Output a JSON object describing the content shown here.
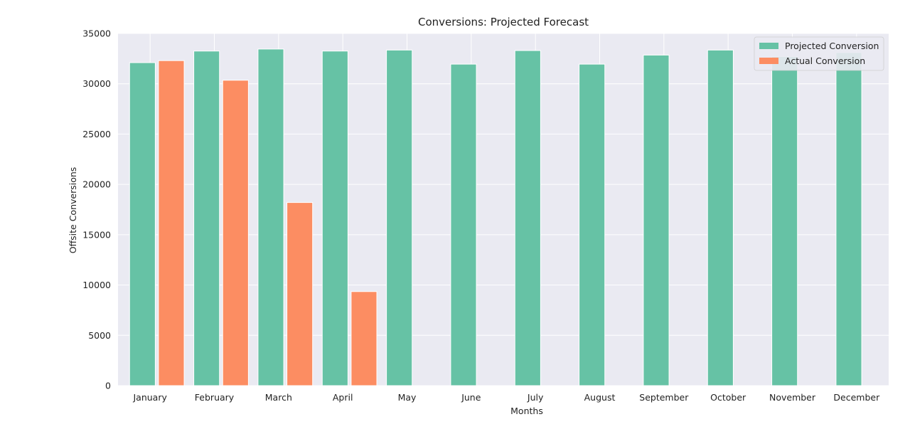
{
  "chart_data": {
    "type": "bar",
    "title": "Conversions: Projected Forecast",
    "xlabel": "Months",
    "ylabel": "Offsite Conversions",
    "categories": [
      "January",
      "February",
      "March",
      "April",
      "May",
      "June",
      "July",
      "August",
      "September",
      "October",
      "November",
      "December"
    ],
    "series": [
      {
        "name": "Projected Conversion",
        "color": "#66c2a5",
        "values": [
          32100,
          33250,
          33450,
          33250,
          33350,
          31950,
          33300,
          31950,
          32850,
          33350,
          32700,
          33100
        ]
      },
      {
        "name": "Actual Conversion",
        "color": "#fc8d62",
        "values": [
          32300,
          30350,
          18200,
          9350,
          0,
          0,
          0,
          0,
          0,
          0,
          0,
          0
        ]
      }
    ],
    "ylim": [
      0,
      35000
    ],
    "yticks": [
      0,
      5000,
      10000,
      15000,
      20000,
      25000,
      30000,
      35000
    ],
    "grid": true,
    "legend_position": "top-right",
    "background_color": "#eaeaf2",
    "grid_color": "#ffffff"
  }
}
